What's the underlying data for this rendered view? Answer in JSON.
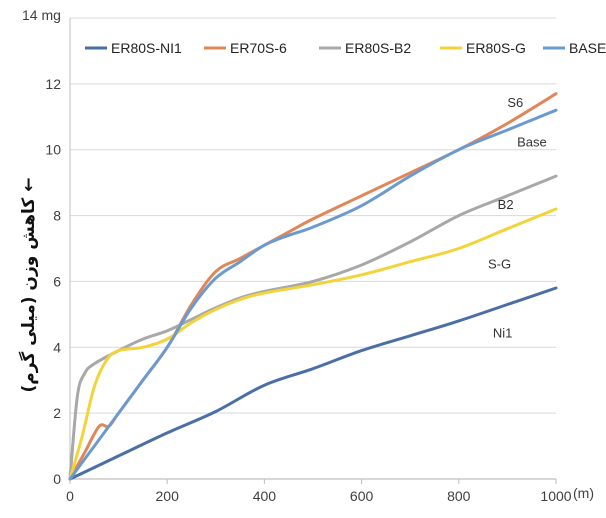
{
  "chart_data": {
    "type": "line",
    "xlabel": "(m)",
    "ylabel": "کاهش وزن (میلی گرم) ←",
    "ytop_label": "14 mg",
    "xlim": [
      0,
      1000
    ],
    "ylim": [
      0,
      14
    ],
    "x_ticks": [
      "0",
      "200",
      "400",
      "600",
      "800",
      "1000"
    ],
    "y_ticks": [
      "0",
      "2",
      "4",
      "6",
      "8",
      "10",
      "12"
    ],
    "grid": "horizontal",
    "legend_position": "top",
    "series": [
      {
        "name": "ER80S-NI1",
        "color": "#4a6fa5",
        "points": [
          [
            0,
            0
          ],
          [
            100,
            0.7
          ],
          [
            200,
            1.4
          ],
          [
            300,
            2.05
          ],
          [
            400,
            2.85
          ],
          [
            500,
            3.35
          ],
          [
            600,
            3.9
          ],
          [
            700,
            4.35
          ],
          [
            800,
            4.8
          ],
          [
            900,
            5.3
          ],
          [
            1000,
            5.8
          ]
        ]
      },
      {
        "name": "ER70S-6",
        "color": "#e0875a",
        "points": [
          [
            0,
            0
          ],
          [
            30,
            0.8
          ],
          [
            60,
            1.6
          ],
          [
            80,
            1.6
          ],
          [
            100,
            2.0
          ],
          [
            150,
            3.0
          ],
          [
            200,
            4.0
          ],
          [
            250,
            5.3
          ],
          [
            300,
            6.3
          ],
          [
            350,
            6.7
          ],
          [
            400,
            7.1
          ],
          [
            450,
            7.5
          ],
          [
            500,
            7.9
          ],
          [
            600,
            8.6
          ],
          [
            700,
            9.3
          ],
          [
            800,
            10.0
          ],
          [
            900,
            10.8
          ],
          [
            1000,
            11.7
          ]
        ]
      },
      {
        "name": "ER80S-B2",
        "color": "#a8a8a8",
        "points": [
          [
            0,
            0
          ],
          [
            15,
            2.5
          ],
          [
            30,
            3.2
          ],
          [
            50,
            3.5
          ],
          [
            100,
            3.9
          ],
          [
            150,
            4.25
          ],
          [
            200,
            4.5
          ],
          [
            250,
            4.85
          ],
          [
            300,
            5.2
          ],
          [
            350,
            5.5
          ],
          [
            400,
            5.7
          ],
          [
            500,
            6.0
          ],
          [
            600,
            6.5
          ],
          [
            700,
            7.2
          ],
          [
            800,
            8.0
          ],
          [
            900,
            8.6
          ],
          [
            1000,
            9.2
          ]
        ]
      },
      {
        "name": "ER80S-G",
        "color": "#f2d43a",
        "points": [
          [
            0,
            0
          ],
          [
            25,
            1.3
          ],
          [
            50,
            2.8
          ],
          [
            75,
            3.6
          ],
          [
            100,
            3.9
          ],
          [
            150,
            4.0
          ],
          [
            200,
            4.25
          ],
          [
            250,
            4.75
          ],
          [
            300,
            5.15
          ],
          [
            350,
            5.45
          ],
          [
            400,
            5.65
          ],
          [
            500,
            5.9
          ],
          [
            600,
            6.2
          ],
          [
            700,
            6.6
          ],
          [
            800,
            7.0
          ],
          [
            900,
            7.6
          ],
          [
            1000,
            8.2
          ]
        ]
      },
      {
        "name": "BASE",
        "color": "#6b9ad0",
        "points": [
          [
            0,
            0
          ],
          [
            50,
            1.0
          ],
          [
            100,
            2.0
          ],
          [
            150,
            3.0
          ],
          [
            200,
            4.0
          ],
          [
            250,
            5.2
          ],
          [
            300,
            6.1
          ],
          [
            350,
            6.6
          ],
          [
            400,
            7.1
          ],
          [
            450,
            7.4
          ],
          [
            500,
            7.65
          ],
          [
            600,
            8.3
          ],
          [
            700,
            9.2
          ],
          [
            800,
            10.0
          ],
          [
            900,
            10.6
          ],
          [
            1000,
            11.2
          ]
        ]
      }
    ],
    "annotations": [
      {
        "text": "S6",
        "x": 900,
        "y": 11.3
      },
      {
        "text": "Base",
        "x": 920,
        "y": 10.1
      },
      {
        "text": "B2",
        "x": 880,
        "y": 8.2
      },
      {
        "text": "S-G",
        "x": 860,
        "y": 6.4
      },
      {
        "text": "Ni1",
        "x": 870,
        "y": 4.3
      }
    ]
  }
}
